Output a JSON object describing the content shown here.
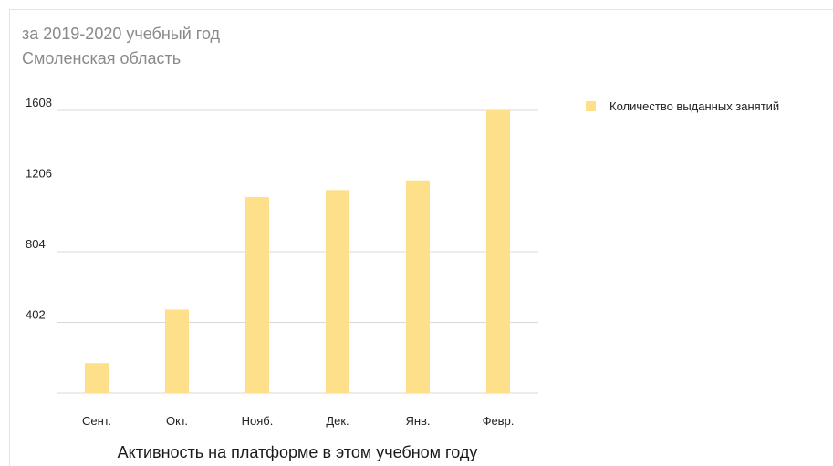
{
  "header": {
    "line1": "за 2019-2020 учебный год",
    "line2": "Смоленская область"
  },
  "footer": {
    "caption": "Активность на платформе в этом учебном году"
  },
  "colors": {
    "bar": "#ffe08a",
    "grid": "#d9d9d9",
    "axis": "#d9d9d9",
    "text": "#222222"
  },
  "chart_data": {
    "type": "bar",
    "categories": [
      "Сент.",
      "Окт.",
      "Нояб.",
      "Дек.",
      "Янв.",
      "Февр."
    ],
    "series": [
      {
        "name": "Количество выданных занятий",
        "values": [
          170,
          475,
          1115,
          1155,
          1210,
          1608
        ]
      }
    ],
    "yticks": [
      402,
      804,
      1206,
      1608
    ],
    "ylim": [
      0,
      1608
    ],
    "grid": true,
    "legend_position": "right"
  }
}
